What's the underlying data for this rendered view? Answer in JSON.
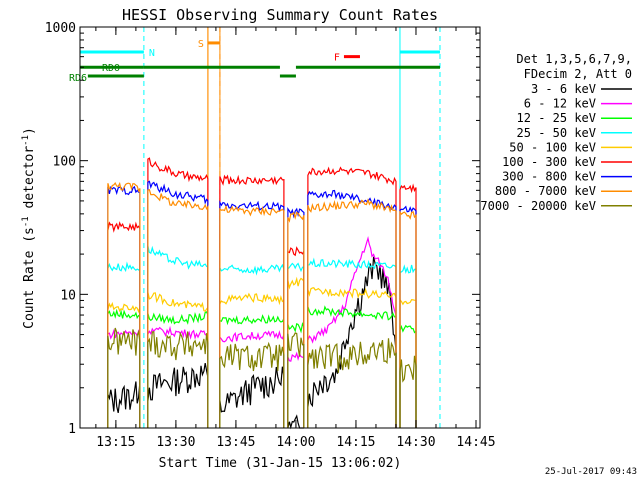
{
  "chart_data": {
    "type": "line",
    "title": "HESSI Observing Summary Count Rates",
    "xlabel": "Start Time (31-Jan-15 13:06:02)",
    "ylabel": "Count Rate (s⁻¹ detector⁻¹)",
    "ylabel_parts": {
      "main": "Count Rate (s",
      "sup1": "-1",
      "mid": " detector",
      "sup2": "-1",
      "end": ")"
    },
    "y_scale": "log",
    "x_range": [
      "13:06:02",
      "14:46:00"
    ],
    "ylim": [
      1,
      1000
    ],
    "x_ticks": [
      "13:15",
      "13:30",
      "13:45",
      "14:00",
      "14:15",
      "14:30",
      "14:45"
    ],
    "y_ticks": [
      "1",
      "10",
      "100",
      "1000"
    ],
    "grid": false,
    "legend_position": "right",
    "legend_header": [
      "Det 1,3,5,6,7,9,",
      "FDecim 2, Att 0"
    ],
    "date_stamp": "25-Jul-2017 09:43",
    "series": [
      {
        "name": "3 - 6 keV",
        "color": "#000000",
        "segments": [
          [
            [
              "13:13",
              1.6
            ],
            [
              "13:20",
              1.8
            ],
            [
              "13:21",
              2.2
            ]
          ],
          [
            [
              "13:23",
              2.0
            ],
            [
              "13:30",
              2.3
            ],
            [
              "13:37",
              2.6
            ],
            [
              "13:38",
              2.4
            ]
          ],
          [
            [
              "13:41",
              1.4
            ],
            [
              "13:49",
              2.0
            ],
            [
              "13:57",
              2.4
            ]
          ],
          [
            [
              "13:58",
              1.0
            ],
            [
              "14:02",
              1.0
            ]
          ],
          [
            [
              "14:03",
              1.7
            ],
            [
              "14:06",
              2.2
            ],
            [
              "14:10",
              2.6
            ],
            [
              "14:13",
              5.5
            ],
            [
              "14:17",
              11
            ],
            [
              "14:19",
              15.5
            ],
            [
              "14:21",
              15.5
            ],
            [
              "14:24",
              8.5
            ],
            [
              "14:25",
              3.8
            ]
          ]
        ]
      },
      {
        "name": "6 - 12 keV",
        "color": "#ff00ff",
        "segments": [
          [
            [
              "13:13",
              5.0
            ],
            [
              "13:20",
              5.2
            ],
            [
              "13:21",
              5.0
            ]
          ],
          [
            [
              "13:23",
              5.4
            ],
            [
              "13:30",
              5.2
            ],
            [
              "13:37",
              5.0
            ],
            [
              "13:38",
              5.1
            ]
          ],
          [
            [
              "13:41",
              4.7
            ],
            [
              "13:49",
              4.9
            ],
            [
              "13:57",
              5.0
            ]
          ],
          [
            [
              "13:58",
              3.4
            ],
            [
              "14:02",
              3.4
            ]
          ],
          [
            [
              "14:03",
              4.5
            ],
            [
              "14:08",
              5.5
            ],
            [
              "14:12",
              8.0
            ],
            [
              "14:15",
              15
            ],
            [
              "14:17",
              22
            ],
            [
              "14:18",
              25
            ],
            [
              "14:19",
              20
            ],
            [
              "14:21",
              17
            ],
            [
              "14:23",
              13
            ],
            [
              "14:25",
              7.0
            ]
          ]
        ]
      },
      {
        "name": "12 - 25 keV",
        "color": "#00ff00",
        "segments": [
          [
            [
              "13:13",
              7.2
            ],
            [
              "13:20",
              7.0
            ],
            [
              "13:21",
              6.8
            ]
          ],
          [
            [
              "13:23",
              6.8
            ],
            [
              "13:30",
              6.4
            ],
            [
              "13:37",
              6.8
            ],
            [
              "13:38",
              7.0
            ]
          ],
          [
            [
              "13:41",
              6.4
            ],
            [
              "13:49",
              6.5
            ],
            [
              "13:57",
              6.6
            ]
          ],
          [
            [
              "13:58",
              5.6
            ],
            [
              "14:02",
              5.7
            ]
          ],
          [
            [
              "14:03",
              7.6
            ],
            [
              "14:08",
              7.5
            ],
            [
              "14:15",
              7.2
            ],
            [
              "14:20",
              7.0
            ],
            [
              "14:25",
              6.8
            ]
          ],
          [
            [
              "14:26",
              5.6
            ],
            [
              "14:30",
              5.3
            ]
          ]
        ]
      },
      {
        "name": "25 - 50 keV",
        "color": "#00ffff",
        "segments": [
          [
            [
              "13:13",
              16
            ],
            [
              "13:20",
              16
            ],
            [
              "13:21",
              15.5
            ]
          ],
          [
            [
              "13:23",
              22
            ],
            [
              "13:27",
              19
            ],
            [
              "13:32",
              17
            ],
            [
              "13:37",
              16.5
            ],
            [
              "13:38",
              16
            ]
          ],
          [
            [
              "13:41",
              15.5
            ],
            [
              "13:49",
              15.3
            ],
            [
              "13:57",
              15.5
            ]
          ],
          [
            [
              "13:58",
              16
            ],
            [
              "14:02",
              16
            ]
          ],
          [
            [
              "14:03",
              17
            ],
            [
              "14:10",
              17
            ],
            [
              "14:20",
              16.5
            ],
            [
              "14:25",
              16
            ]
          ],
          [
            [
              "14:26",
              15.5
            ],
            [
              "14:30",
              15.5
            ]
          ]
        ]
      },
      {
        "name": "50 - 100 keV",
        "color": "#ffcc00",
        "segments": [
          [
            [
              "13:13",
              8.0
            ],
            [
              "13:20",
              8.0
            ],
            [
              "13:21",
              8.0
            ]
          ],
          [
            [
              "13:23",
              10
            ],
            [
              "13:30",
              8.5
            ],
            [
              "13:37",
              8.0
            ],
            [
              "13:38",
              8.0
            ]
          ],
          [
            [
              "13:41",
              9.0
            ],
            [
              "13:49",
              9.5
            ],
            [
              "13:57",
              9.0
            ]
          ],
          [
            [
              "13:58",
              12
            ],
            [
              "14:02",
              12.5
            ]
          ],
          [
            [
              "14:03",
              10.5
            ],
            [
              "14:10",
              10.5
            ],
            [
              "14:20",
              10
            ],
            [
              "14:25",
              9.5
            ]
          ],
          [
            [
              "14:26",
              9.0
            ],
            [
              "14:30",
              9.0
            ]
          ]
        ]
      },
      {
        "name": "100 - 300 keV",
        "color": "#ff0000",
        "segments": [
          [
            [
              "13:13",
              32
            ],
            [
              "13:20",
              32
            ],
            [
              "13:21",
              31
            ]
          ],
          [
            [
              "13:23",
              100
            ],
            [
              "13:26",
              90
            ],
            [
              "13:30",
              80
            ],
            [
              "13:34",
              75
            ],
            [
              "13:38",
              73
            ]
          ],
          [
            [
              "13:41",
              72
            ],
            [
              "13:49",
              71
            ],
            [
              "13:57",
              72
            ]
          ],
          [
            [
              "13:58",
              21
            ],
            [
              "14:02",
              21
            ]
          ],
          [
            [
              "14:03",
              82
            ],
            [
              "14:10",
              85
            ],
            [
              "14:18",
              80
            ],
            [
              "14:25",
              70
            ]
          ],
          [
            [
              "14:26",
              65
            ],
            [
              "14:30",
              63
            ]
          ]
        ]
      },
      {
        "name": "300 - 800 keV",
        "color": "#0000ff",
        "segments": [
          [
            [
              "13:13",
              60
            ],
            [
              "13:20",
              60
            ],
            [
              "13:21",
              58
            ]
          ],
          [
            [
              "13:23",
              68
            ],
            [
              "13:30",
              56
            ],
            [
              "13:37",
              52
            ],
            [
              "13:38",
              50
            ]
          ],
          [
            [
              "13:41",
              47
            ],
            [
              "13:49",
              46
            ],
            [
              "13:57",
              45
            ]
          ],
          [
            [
              "13:58",
              41
            ],
            [
              "14:02",
              41
            ]
          ],
          [
            [
              "14:03",
              55
            ],
            [
              "14:10",
              56
            ],
            [
              "14:20",
              48
            ],
            [
              "14:25",
              45
            ]
          ],
          [
            [
              "14:26",
              43
            ],
            [
              "14:30",
              42
            ]
          ]
        ]
      },
      {
        "name": "800 - 7000 keV",
        "color": "#ff8c00",
        "segments": [
          [
            [
              "13:13",
              65
            ],
            [
              "13:20",
              64
            ],
            [
              "13:21",
              62
            ]
          ],
          [
            [
              "13:23",
              60
            ],
            [
              "13:30",
              47
            ],
            [
              "13:37",
              46
            ],
            [
              "13:38",
              45
            ]
          ],
          [
            [
              "13:41",
              43
            ],
            [
              "13:49",
              42
            ],
            [
              "13:57",
              42
            ]
          ],
          [
            [
              "13:58",
              38
            ],
            [
              "14:02",
              39
            ]
          ],
          [
            [
              "14:03",
              44
            ],
            [
              "14:10",
              46
            ],
            [
              "14:18",
              48
            ],
            [
              "14:25",
              42
            ]
          ],
          [
            [
              "14:26",
              39
            ],
            [
              "14:30",
              39
            ]
          ]
        ]
      },
      {
        "name": "7000 - 20000 keV",
        "color": "#808000",
        "segments": [
          [
            [
              "13:13",
              4.5
            ],
            [
              "13:20",
              4.5
            ],
            [
              "13:21",
              4.4
            ]
          ],
          [
            [
              "13:23",
              4.5
            ],
            [
              "13:30",
              4.2
            ],
            [
              "13:37",
              4.3
            ],
            [
              "13:38",
              4.3
            ]
          ],
          [
            [
              "13:41",
              3.5
            ],
            [
              "13:49",
              3.4
            ],
            [
              "13:57",
              3.5
            ]
          ],
          [
            [
              "13:58",
              4.2
            ],
            [
              "14:02",
              4.2
            ]
          ],
          [
            [
              "14:03",
              3.3
            ],
            [
              "14:08",
              3.4
            ],
            [
              "14:15",
              3.5
            ],
            [
              "14:22",
              4.0
            ],
            [
              "14:25",
              3.6
            ]
          ],
          [
            [
              "14:26",
              2.9
            ],
            [
              "14:30",
              2.9
            ]
          ]
        ]
      }
    ],
    "status_bars": [
      {
        "label": "N",
        "color": "#00ffff",
        "value": 650,
        "segments": [
          [
            "13:06:02",
            "13:22"
          ],
          [
            "14:26",
            "14:36"
          ]
        ]
      },
      {
        "label": "RDO",
        "color": "#008000",
        "value": 500,
        "segments": [
          [
            "13:06:02",
            "13:22"
          ],
          [
            "13:22",
            "13:56"
          ],
          [
            "14:00",
            "14:36"
          ]
        ]
      },
      {
        "label": "RD6",
        "color": "#008000",
        "value": 430,
        "segments": [
          [
            "13:08",
            "13:22"
          ],
          [
            "13:56",
            "14:00"
          ]
        ]
      },
      {
        "label": "S",
        "color": "#ff8c00",
        "value": 760,
        "segments": [
          [
            "13:38",
            "13:41"
          ]
        ]
      },
      {
        "label": "F",
        "color": "#ff0000",
        "value": 600,
        "segments": [
          [
            "14:12",
            "14:16"
          ]
        ]
      }
    ],
    "vertical_markers": [
      {
        "time": "13:06:02",
        "color": "#00ffff",
        "style": "solid"
      },
      {
        "time": "13:22",
        "color": "#00ffff",
        "style": "dashed"
      },
      {
        "time": "13:38",
        "color": "#ff8c00",
        "style": "solid"
      },
      {
        "time": "13:41",
        "color": "#ff8c00",
        "style": "dashed"
      },
      {
        "time": "14:26",
        "color": "#00ffff",
        "style": "solid"
      },
      {
        "time": "14:36",
        "color": "#00ffff",
        "style": "dashed"
      }
    ],
    "gaps": [
      {
        "start": "13:38",
        "end": "13:41",
        "color": "#ff8c00"
      }
    ]
  }
}
